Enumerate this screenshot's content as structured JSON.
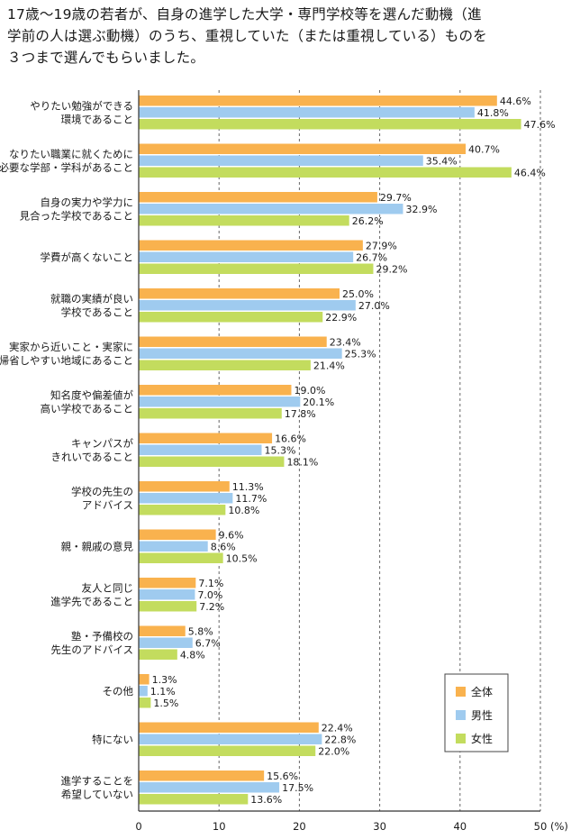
{
  "title_lines": [
    "17歳〜19歳の若者が、自身の進学した大学・専門学校等を選んだ動機（進",
    "学前の人は選ぶ動機）のうち、重視していた（または重視している）ものを",
    "３つまで選んでもらいました。"
  ],
  "chart_data": {
    "type": "bar",
    "orientation": "horizontal",
    "categories": [
      [
        "やりたい勉強ができる",
        "環境であること"
      ],
      [
        "なりたい職業に就くために",
        "必要な学部・学科があること"
      ],
      [
        "自身の実力や学力に",
        "見合った学校であること"
      ],
      [
        "学費が高くないこと"
      ],
      [
        "就職の実績が良い",
        "学校であること"
      ],
      [
        "実家から近いこと・実家に",
        "帰省しやすい地域にあること"
      ],
      [
        "知名度や偏差値が",
        "高い学校であること"
      ],
      [
        "キャンパスが",
        "きれいであること"
      ],
      [
        "学校の先生の",
        "アドバイス"
      ],
      [
        "親・親戚の意見"
      ],
      [
        "友人と同じ",
        "進学先であること"
      ],
      [
        "塾・予備校の",
        "先生のアドバイス"
      ],
      [
        "その他"
      ],
      [
        "特にない"
      ],
      [
        "進学することを",
        "希望していない"
      ]
    ],
    "series": [
      {
        "name": "全体",
        "color": "#f9b24e",
        "values": [
          44.6,
          40.7,
          29.7,
          27.9,
          25.0,
          23.4,
          19.0,
          16.6,
          11.3,
          9.6,
          7.1,
          5.8,
          1.3,
          22.4,
          15.6
        ]
      },
      {
        "name": "男性",
        "color": "#9fcbef",
        "values": [
          41.8,
          35.4,
          32.9,
          26.7,
          27.0,
          25.3,
          20.1,
          15.3,
          11.7,
          8.6,
          7.0,
          6.7,
          1.1,
          22.8,
          17.5
        ]
      },
      {
        "name": "女性",
        "color": "#c3dc5e",
        "values": [
          47.6,
          46.4,
          26.2,
          29.2,
          22.9,
          21.4,
          17.8,
          18.1,
          10.8,
          10.5,
          7.2,
          4.8,
          1.5,
          22.0,
          13.6
        ]
      }
    ],
    "value_labels": [
      [
        "44.6%",
        "40.7%",
        "29.7%",
        "27.9%",
        "25.0%",
        "23.4%",
        "19.0%",
        "16.6%",
        "11.3%",
        "9.6%",
        "7.1%",
        "5.8%",
        "1.3%",
        "22.4%",
        "15.6%"
      ],
      [
        "41.8%",
        "35.4%",
        "32.9%",
        "26.7%",
        "27.0%",
        "25.3%",
        "20.1%",
        "15.3%",
        "11.7%",
        "8.6%",
        "7.0%",
        "6.7%",
        "1.1%",
        "22.8%",
        "17.5%"
      ],
      [
        "47.6%",
        "46.4%",
        "26.2%",
        "29.2%",
        "22.9%",
        "21.4%",
        "17.8%",
        "18.1%",
        "10.8%",
        "10.5%",
        "7.2%",
        "4.8%",
        "1.5%",
        "22.0%",
        "13.6%"
      ]
    ],
    "xlim": [
      0,
      50
    ],
    "xticks": [
      "0",
      "10",
      "20",
      "30",
      "40",
      "50"
    ],
    "x_unit": "(%)",
    "grid": "vertical-dashed",
    "legend_position": "bottom-right"
  }
}
